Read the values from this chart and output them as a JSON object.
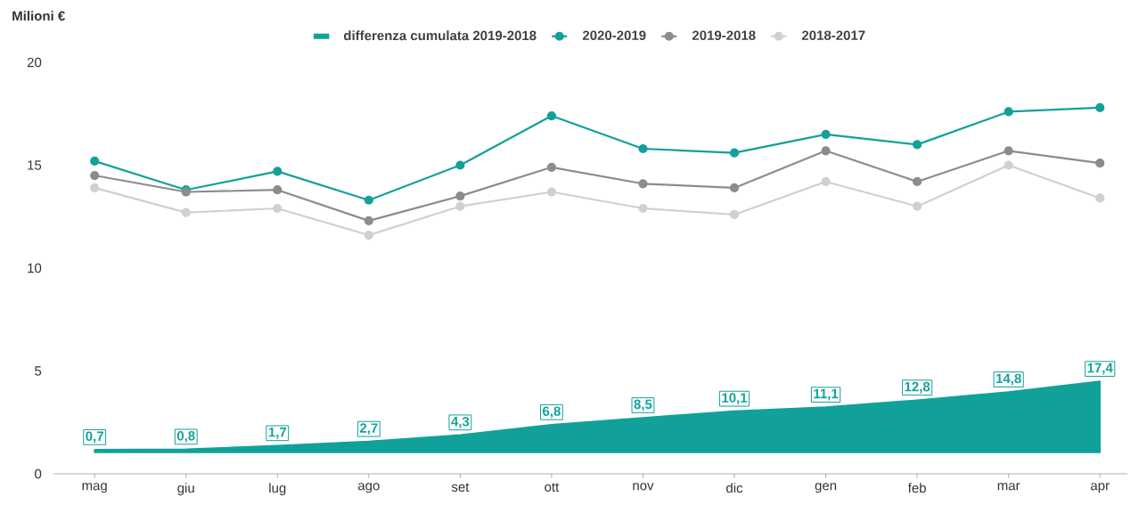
{
  "chart_data": {
    "type": "line",
    "ylabel": "Milioni €",
    "categories": [
      "mag",
      "giu",
      "lug",
      "ago",
      "set",
      "ott",
      "nov",
      "dic",
      "gen",
      "feb",
      "mar",
      "apr"
    ],
    "ylim": [
      0,
      20
    ],
    "yticks": [
      0,
      5,
      10,
      15,
      20
    ],
    "legend": "top",
    "marker": "circle",
    "line_style": "solid",
    "series": [
      {
        "name": "differenza cumulata 2019-2018",
        "type": "area",
        "axis": "y2",
        "marker": "none",
        "color": "#12a19a",
        "values": [
          0.7,
          0.8,
          1.7,
          2.7,
          4.3,
          6.8,
          8.5,
          10.1,
          11.1,
          12.8,
          14.8,
          17.4
        ],
        "value_labels": [
          "0,7",
          "0,8",
          "1,7",
          "2,7",
          "4,3",
          "6,8",
          "8,5",
          "10,1",
          "11,1",
          "12,8",
          "14,8",
          "17,4"
        ]
      },
      {
        "name": "2020-2019",
        "color": "#12a19a",
        "values": [
          15.2,
          13.8,
          14.7,
          13.3,
          15.0,
          17.4,
          15.8,
          15.6,
          16.5,
          16.0,
          17.6,
          17.8
        ]
      },
      {
        "name": "2019-2018",
        "color": "#8c8c8c",
        "values": [
          14.5,
          13.7,
          13.8,
          12.3,
          13.5,
          14.9,
          14.1,
          13.9,
          15.7,
          14.2,
          15.7,
          15.1
        ]
      },
      {
        "name": "2018-2017",
        "color": "#d0d0d0",
        "values": [
          13.9,
          12.7,
          12.9,
          11.6,
          13.0,
          13.7,
          12.9,
          12.6,
          14.2,
          13.0,
          15.0,
          13.4
        ]
      }
    ]
  }
}
